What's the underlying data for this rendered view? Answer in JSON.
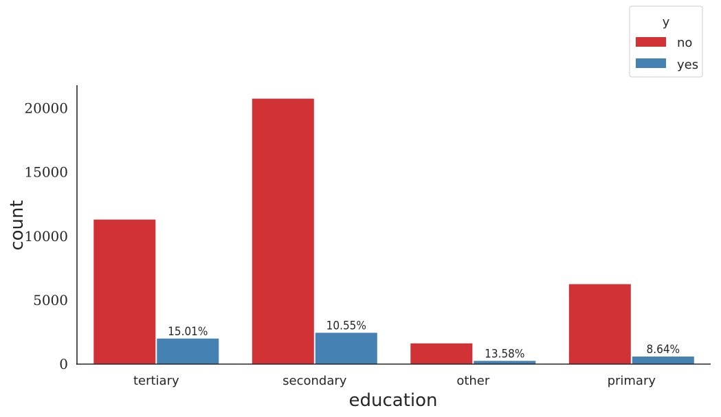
{
  "chart_data": {
    "type": "bar",
    "xlabel": "education",
    "ylabel": "count",
    "categories": [
      "tertiary",
      "secondary",
      "other",
      "primary"
    ],
    "series": [
      {
        "name": "no",
        "color": "#d03235",
        "values": [
          11300,
          20750,
          1620,
          6250
        ]
      },
      {
        "name": "yes",
        "color": "#4681b4",
        "values": [
          1996,
          2450,
          255,
          591
        ]
      }
    ],
    "bar_labels": {
      "series": "yes",
      "labels": [
        "15.01%",
        "10.55%",
        "13.58%",
        "8.64%"
      ]
    },
    "ylim": [
      0,
      21800
    ],
    "yticks": [
      0,
      5000,
      10000,
      15000,
      20000
    ],
    "ytick_labels": [
      "0",
      "5000",
      "10000",
      "15000",
      "20000"
    ],
    "grid": false,
    "legend": {
      "title": "y",
      "placement": "top-right, above plot",
      "entries": [
        "no",
        "yes"
      ]
    }
  }
}
